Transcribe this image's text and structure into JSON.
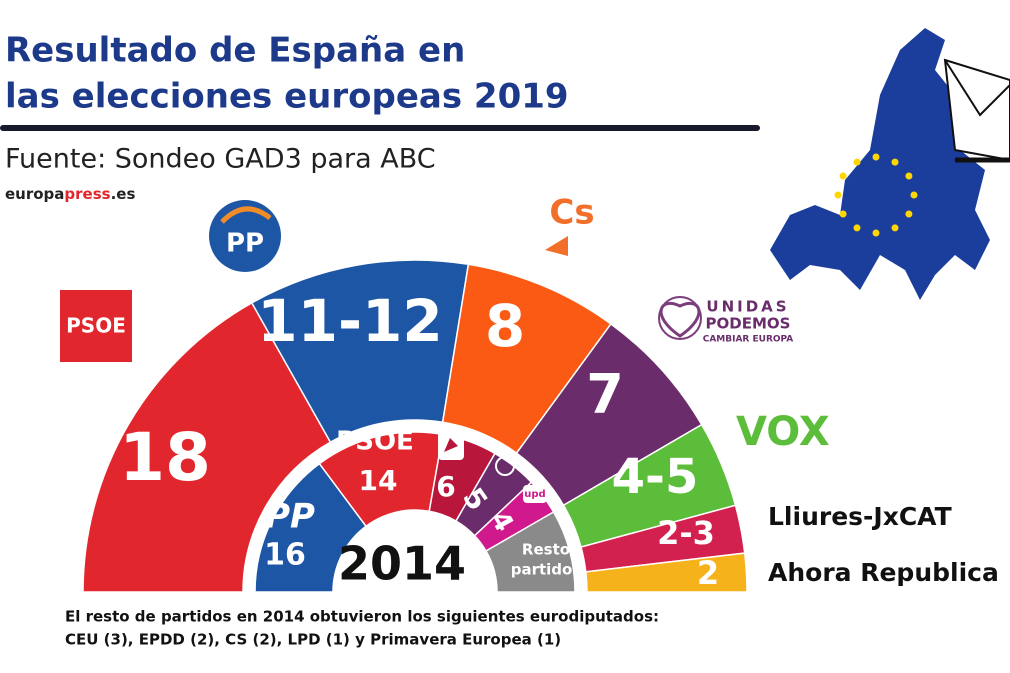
{
  "chart_data": {
    "type": "parliament",
    "title": [
      "Resultado de España en",
      "las elecciones europeas 2019"
    ],
    "subtitle": "Fuente: Sondeo GAD3 para ABC",
    "source": [
      "europa",
      "press",
      ".es"
    ],
    "rings": [
      {
        "labels": [
          "PSOE",
          "PP",
          "Cs",
          [
            "UNIDAS",
            "PODEMOS",
            "CAMBIAR EUROPA"
          ],
          "VOX",
          "Lliures-JxCAT",
          "Ahora Republica"
        ],
        "low": [
          18,
          11,
          8,
          7,
          4,
          2,
          2
        ],
        "high": [
          18,
          12,
          8,
          7,
          5,
          3,
          2
        ],
        "value_labels": [
          "18",
          "11-12",
          "8",
          "7",
          "4-5",
          "2-3",
          "2"
        ],
        "colors": [
          "#e2262d",
          "#1d56a5",
          "#fa5a14",
          "#6a2c6b",
          "#5cbd3a",
          "#d3214f",
          "#f6b21b"
        ]
      },
      {
        "name": "2014",
        "labels": [
          "PP",
          "PSOE",
          null,
          null,
          "upd",
          [
            "Resto",
            "partidos"
          ]
        ],
        "values": [
          16,
          14,
          6,
          5,
          4,
          9
        ],
        "value_labels": [
          "16",
          "14",
          "6",
          "5",
          "4",
          null
        ],
        "colors": [
          "#1d56a5",
          "#e2262d",
          "#b8163a",
          "#6a2c6b",
          "#d0198c",
          "#8a8a8a"
        ]
      }
    ],
    "note": [
      "El resto de partidos en 2014 obtuvieron los siguientes eurodiputados:",
      "CEU (3), EPDD (2), CS (2), LPD (1) y Primavera Europea (1)"
    ]
  }
}
